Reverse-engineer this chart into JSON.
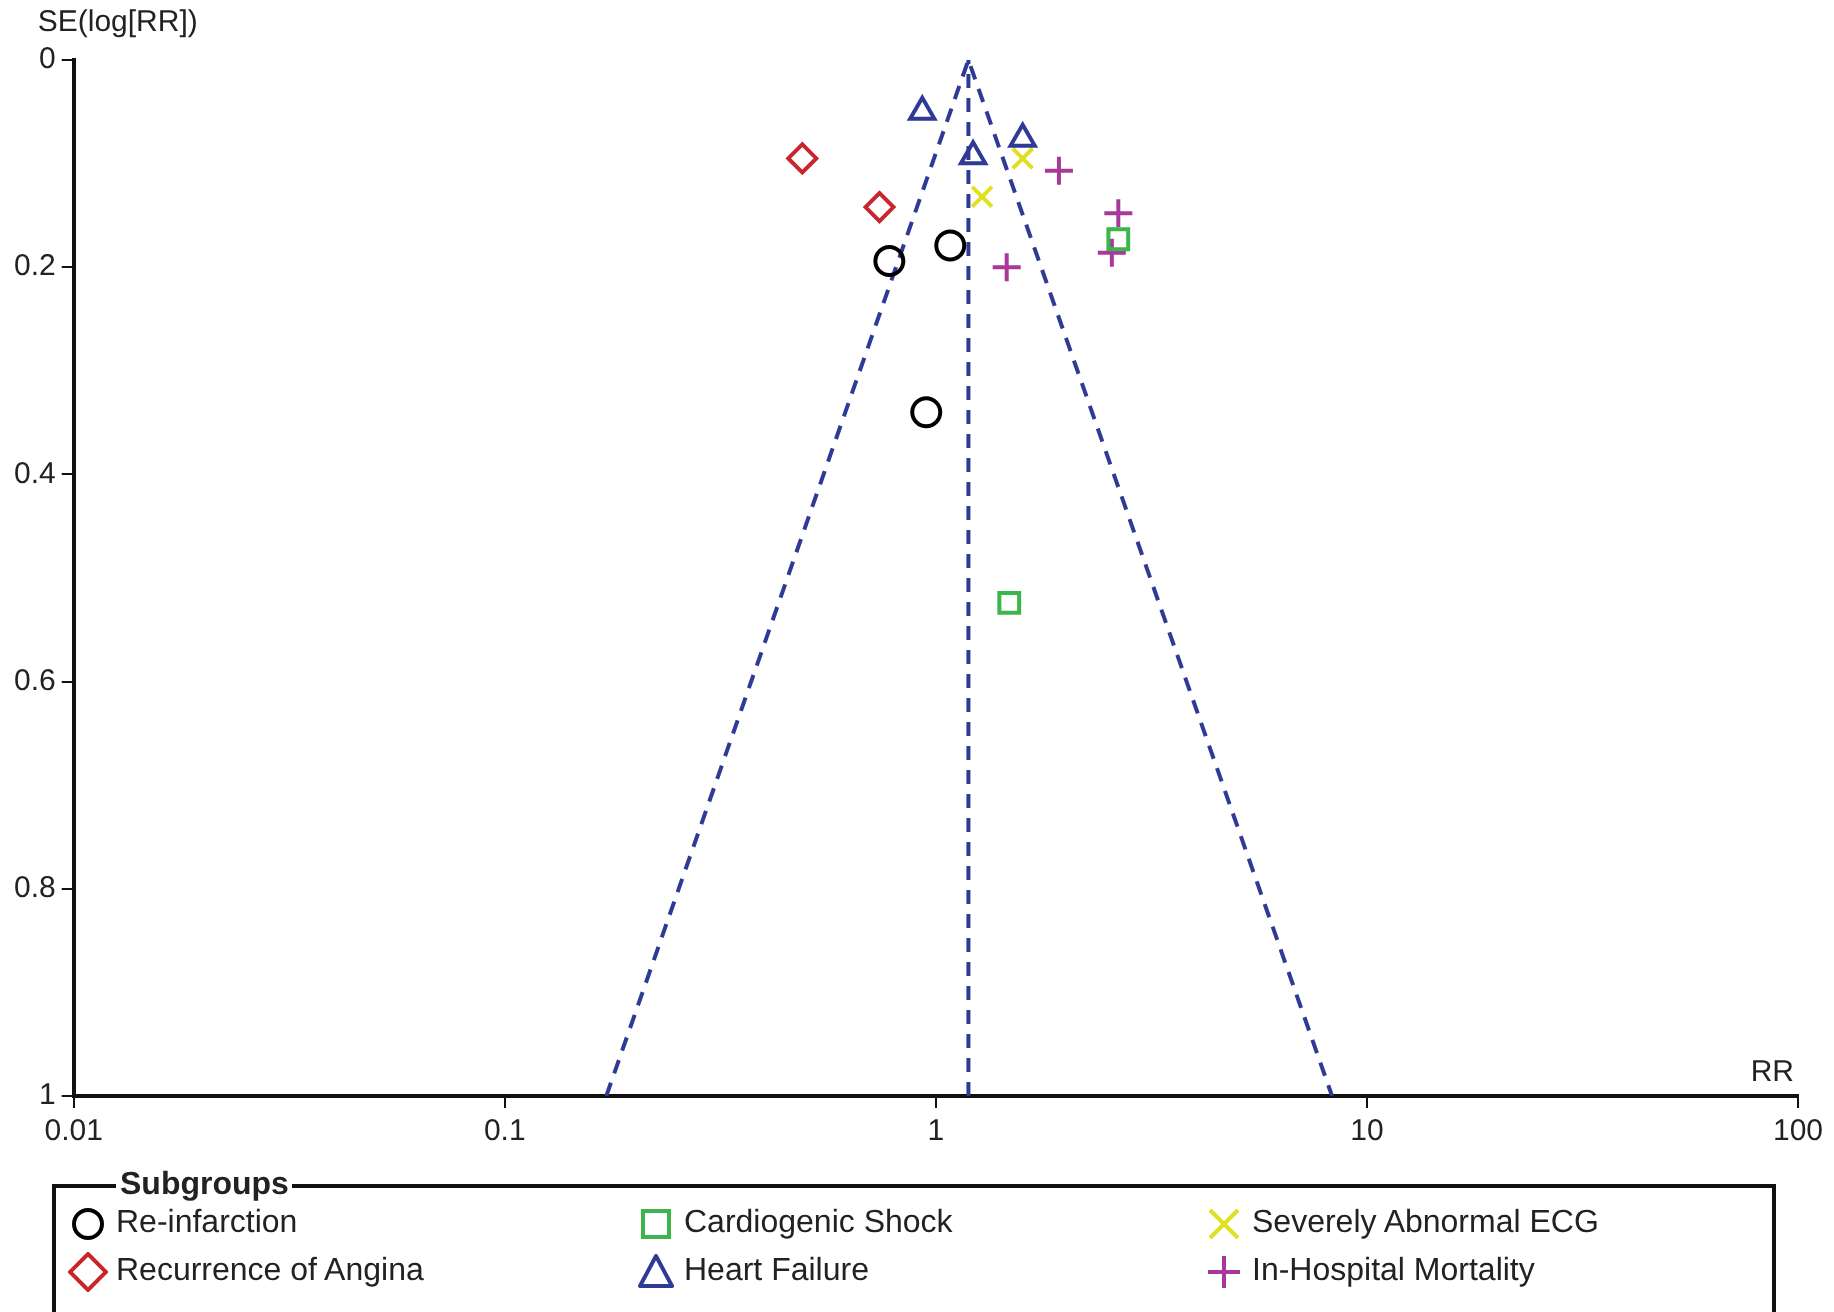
{
  "chart_data": {
    "type": "scatter",
    "xlabel": "RR",
    "ylabel": "SE(log[RR])",
    "legend_title": "Subgroups",
    "legend": "bottom",
    "grid": false,
    "log": "x",
    "xlim": [
      0.01,
      100
    ],
    "xticks": [
      0.01,
      0.1,
      1,
      10,
      100
    ],
    "ylim": [
      1,
      0
    ],
    "yticks": [
      0,
      0.2,
      0.4,
      0.6,
      0.8,
      1
    ],
    "series": [
      {
        "name": "Re-infarction",
        "color": "#000000",
        "marker": "circle",
        "x": [
          0.78,
          1.08,
          0.95
        ],
        "values": [
          0.194,
          0.179,
          0.34
        ]
      },
      {
        "name": "Recurrence of Angina",
        "color": "#c8262e",
        "marker": "diamond",
        "x": [
          0.49,
          0.74
        ],
        "values": [
          0.095,
          0.142
        ]
      },
      {
        "name": "Cardiogenic Shock",
        "color": "#3cb54a",
        "marker": "square",
        "x": [
          2.65,
          1.48
        ],
        "values": [
          0.173,
          0.524
        ]
      },
      {
        "name": "Heart Failure",
        "color": "#2e3a96",
        "marker": "triangle",
        "x": [
          0.93,
          1.22,
          1.59
        ],
        "values": [
          0.05,
          0.093,
          0.076
        ]
      },
      {
        "name": "Severely Abnormal ECG",
        "color": "#e0e020",
        "marker": "cross",
        "x": [
          1.59,
          1.28
        ],
        "values": [
          0.095,
          0.132
        ]
      },
      {
        "name": "In-Hospital Mortality",
        "color": "#a8389a",
        "marker": "plus",
        "x": [
          1.93,
          2.65,
          2.56,
          1.46
        ],
        "values": [
          0.107,
          0.148,
          0.186,
          0.2
        ]
      },
      {
        "type": "line",
        "color": "#2e3a96",
        "line_style": "dashed",
        "marker": "none",
        "x": [
          0.172,
          1.19,
          8.3
        ],
        "values": [
          1,
          0,
          1
        ]
      },
      {
        "type": "line",
        "color": "#2e3a96",
        "line_style": "dashed",
        "marker": "none",
        "x": [
          1.19,
          1.19
        ],
        "values": [
          1,
          0
        ]
      }
    ]
  }
}
